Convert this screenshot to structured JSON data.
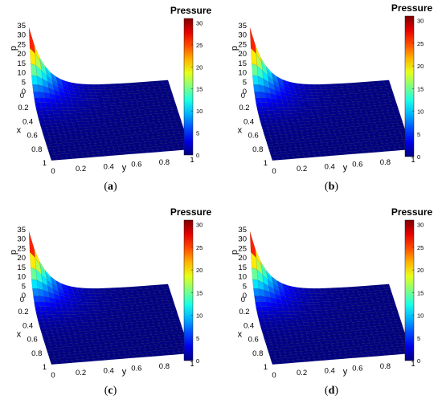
{
  "figure": {
    "panels": [
      {
        "label": "a",
        "colorbar_size": "small"
      },
      {
        "label": "b",
        "colorbar_size": "large"
      },
      {
        "label": "c",
        "colorbar_size": "large"
      },
      {
        "label": "d",
        "colorbar_size": "large"
      }
    ]
  },
  "chart_data": [
    {
      "type": "surface",
      "panel": "(a)",
      "colorbar_title": "Pressure",
      "colormap": "jet",
      "colorbar_ticks": [
        "0",
        "5",
        "10",
        "15",
        "20",
        "25",
        "30"
      ],
      "xlabel": "x",
      "ylabel": "y",
      "zlabel": "p",
      "x_ticks": [
        "0",
        "0.2",
        "0.4",
        "0.6",
        "0.8",
        "1"
      ],
      "y_ticks": [
        "0",
        "0.2",
        "0.4",
        "0.6",
        "0.8",
        "1"
      ],
      "z_ticks": [
        "0",
        "5",
        "10",
        "15",
        "20",
        "25",
        "30",
        "35"
      ],
      "xlim": [
        0,
        1
      ],
      "ylim": [
        0,
        1
      ],
      "zlim": [
        0,
        35
      ],
      "clim": [
        0,
        31
      ],
      "peak": {
        "x": 0,
        "y": 0,
        "p": 31
      }
    },
    {
      "type": "surface",
      "panel": "(b)",
      "colorbar_title": "Pressure",
      "colormap": "jet",
      "colorbar_ticks": [
        "0",
        "5",
        "10",
        "15",
        "20",
        "25",
        "30"
      ],
      "xlabel": "x",
      "ylabel": "y",
      "zlabel": "p",
      "x_ticks": [
        "0",
        "0.2",
        "0.4",
        "0.6",
        "0.8",
        "1"
      ],
      "y_ticks": [
        "0",
        "0.2",
        "0.4",
        "0.6",
        "0.8",
        "1"
      ],
      "z_ticks": [
        "0",
        "5",
        "10",
        "15",
        "20",
        "25",
        "30",
        "35"
      ],
      "xlim": [
        0,
        1
      ],
      "ylim": [
        0,
        1
      ],
      "zlim": [
        0,
        35
      ],
      "clim": [
        0,
        31
      ],
      "peak": {
        "x": 0,
        "y": 0,
        "p": 31
      }
    },
    {
      "type": "surface",
      "panel": "(c)",
      "colorbar_title": "Pressure",
      "colormap": "jet",
      "colorbar_ticks": [
        "0",
        "5",
        "10",
        "15",
        "20",
        "25",
        "30"
      ],
      "xlabel": "x",
      "ylabel": "y",
      "zlabel": "p",
      "x_ticks": [
        "0",
        "0.2",
        "0.4",
        "0.6",
        "0.8",
        "1"
      ],
      "y_ticks": [
        "0",
        "0.2",
        "0.4",
        "0.6",
        "0.8",
        "1"
      ],
      "z_ticks": [
        "0",
        "5",
        "10",
        "15",
        "20",
        "25",
        "30",
        "35"
      ],
      "xlim": [
        0,
        1
      ],
      "ylim": [
        0,
        1
      ],
      "zlim": [
        0,
        35
      ],
      "clim": [
        0,
        31
      ],
      "peak": {
        "x": 0,
        "y": 0,
        "p": 31
      }
    },
    {
      "type": "surface",
      "panel": "(d)",
      "colorbar_title": "Pressure",
      "colormap": "jet",
      "colorbar_ticks": [
        "0",
        "5",
        "10",
        "15",
        "20",
        "25",
        "30"
      ],
      "xlabel": "x",
      "ylabel": "y",
      "zlabel": "p",
      "x_ticks": [
        "0",
        "0.2",
        "0.4",
        "0.6",
        "0.8",
        "1"
      ],
      "y_ticks": [
        "0",
        "0.2",
        "0.4",
        "0.6",
        "0.8",
        "1"
      ],
      "z_ticks": [
        "0",
        "5",
        "10",
        "15",
        "20",
        "25",
        "30",
        "35"
      ],
      "xlim": [
        0,
        1
      ],
      "ylim": [
        0,
        1
      ],
      "zlim": [
        0,
        35
      ],
      "clim": [
        0,
        31
      ],
      "peak": {
        "x": 0,
        "y": 0,
        "p": 31
      }
    }
  ]
}
